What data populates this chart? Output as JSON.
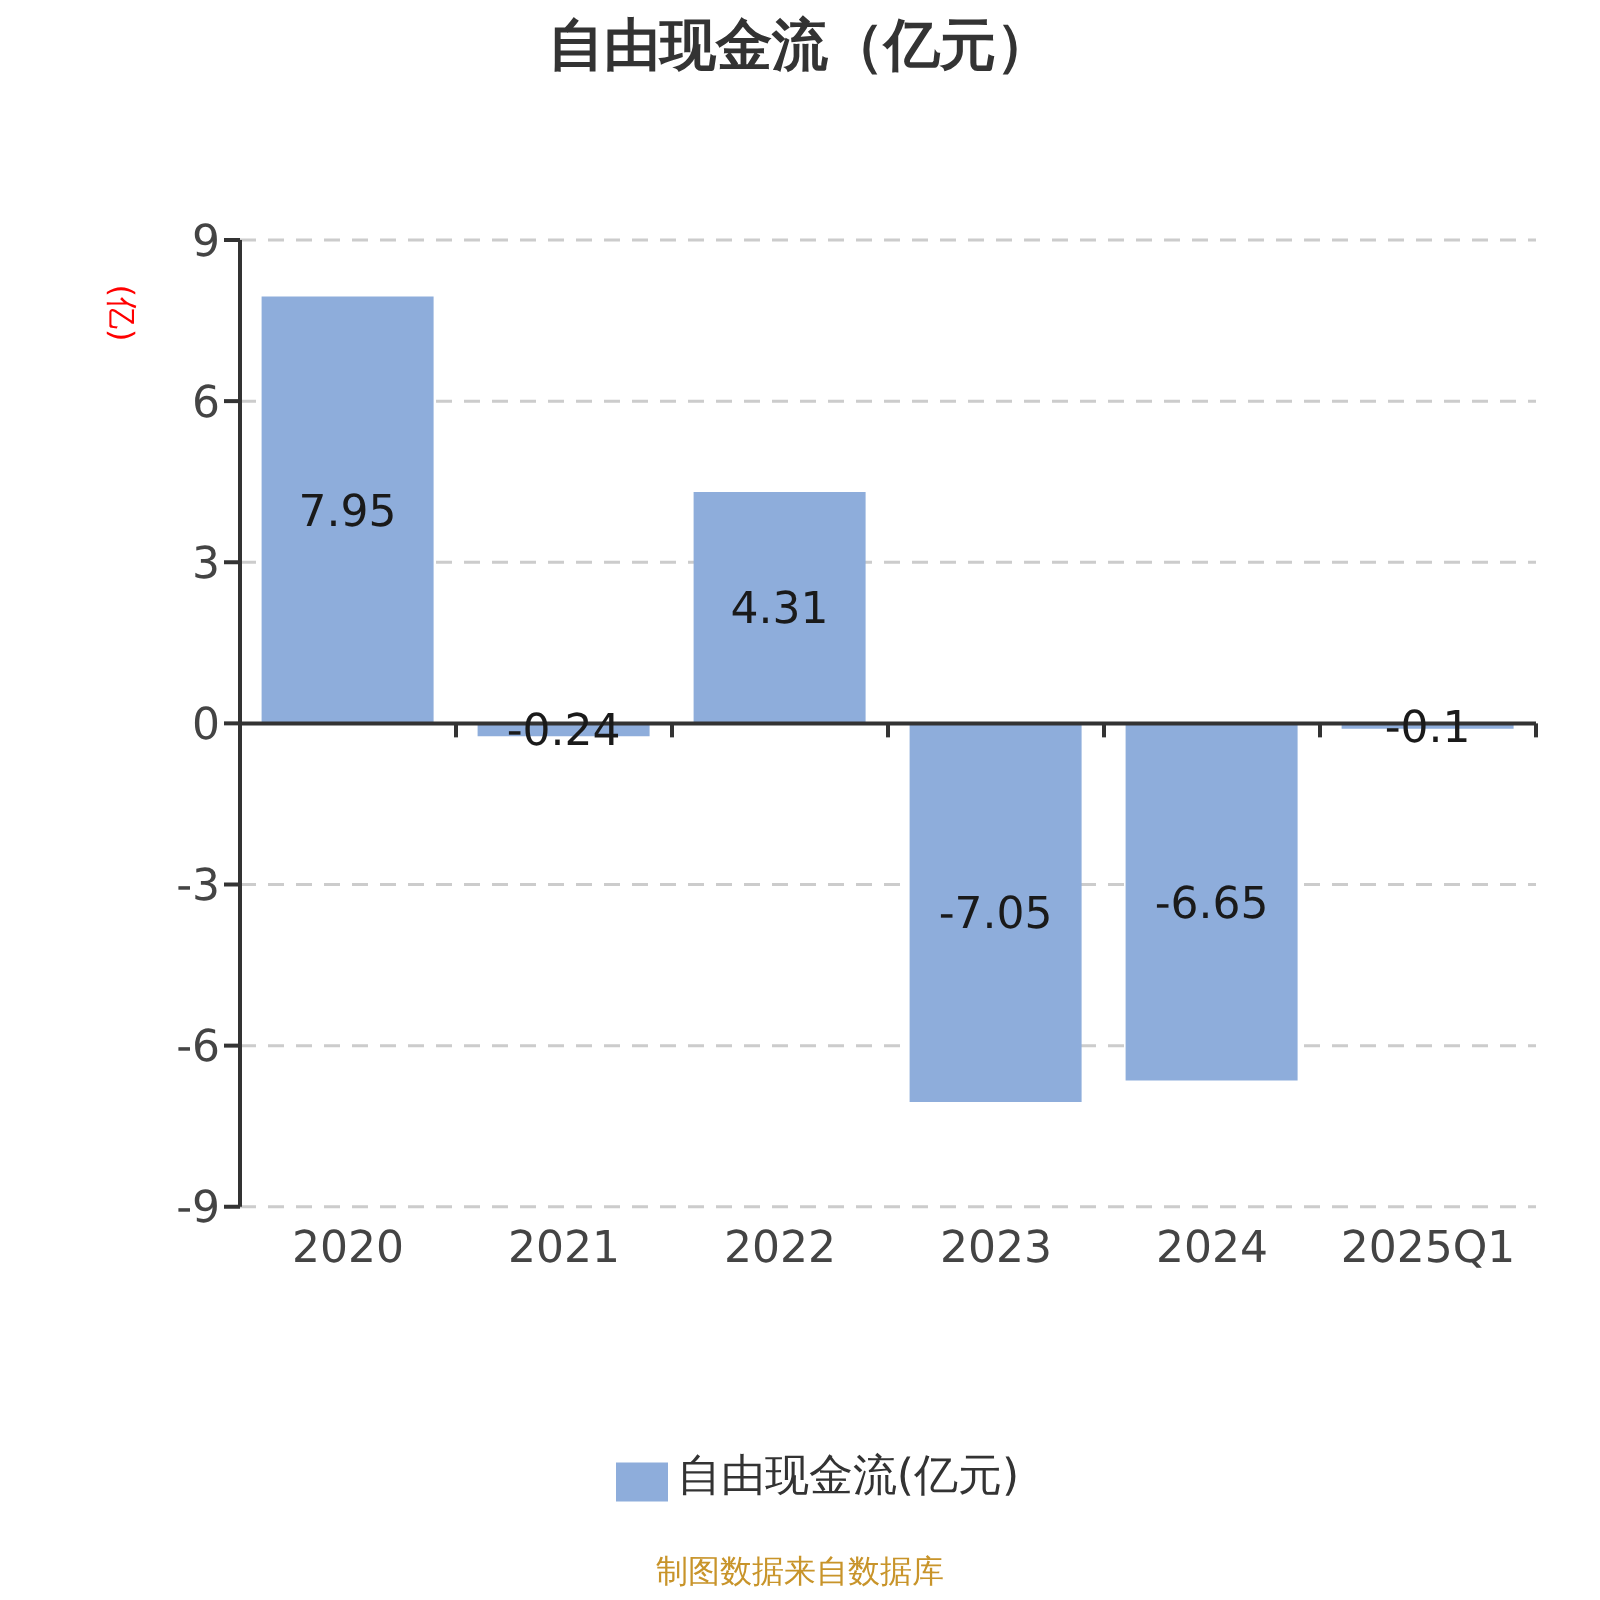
{
  "chart_data": {
    "type": "bar",
    "title": "自由现金流（亿元）",
    "ylabel": "(亿)",
    "categories": [
      "2020",
      "2021",
      "2022",
      "2023",
      "2024",
      "2025Q1"
    ],
    "series": [
      {
        "name": "自由现金流(亿元)",
        "color": "#8eaddb",
        "values": [
          7.95,
          -0.24,
          4.31,
          -7.05,
          -6.65,
          -0.1
        ]
      }
    ],
    "ylim": [
      -9,
      9
    ],
    "yticks": [
      -9,
      -6,
      -3,
      0,
      3,
      6,
      9
    ],
    "grid": "y",
    "legend": "bottom",
    "data_labels": true,
    "annotations": [
      "制图数据来自数据库"
    ]
  }
}
